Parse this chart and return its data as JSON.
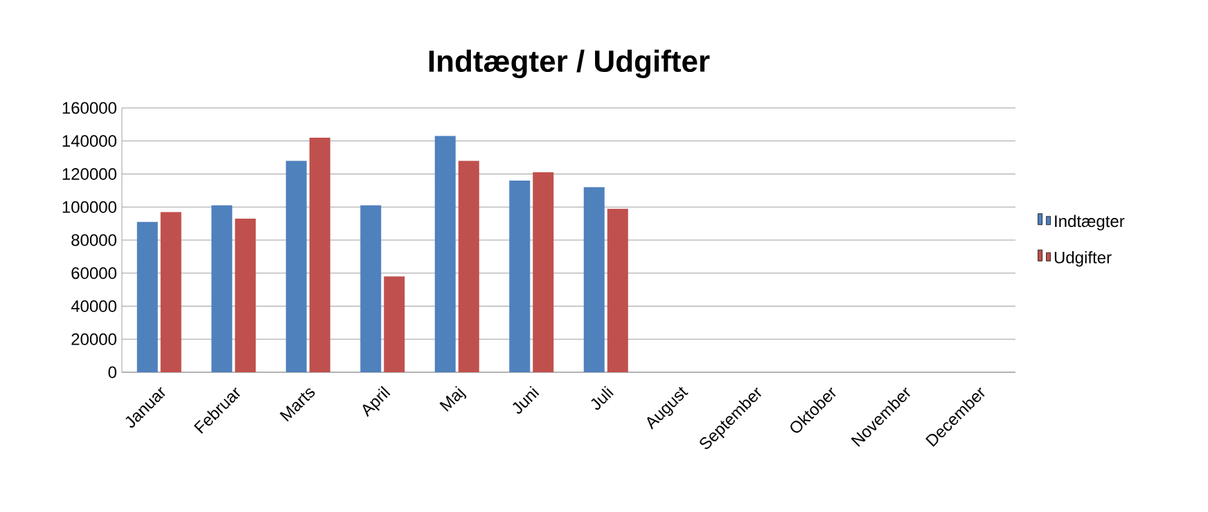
{
  "chart_data": {
    "type": "bar",
    "title": "Indtægter / Udgifter",
    "categories": [
      "Januar",
      "Februar",
      "Marts",
      "April",
      "Maj",
      "Juni",
      "Juli",
      "August",
      "September",
      "Oktober",
      "November",
      "December"
    ],
    "series": [
      {
        "name": "Indtægter",
        "color": "#4f81bd",
        "values": [
          91000,
          101000,
          128000,
          101000,
          143000,
          116000,
          112000,
          null,
          null,
          null,
          null,
          null
        ]
      },
      {
        "name": "Udgifter",
        "color": "#c0504d",
        "values": [
          97000,
          93000,
          142000,
          58000,
          128000,
          121000,
          99000,
          null,
          null,
          null,
          null,
          null
        ]
      }
    ],
    "ylim": [
      0,
      160000
    ],
    "yticks": [
      0,
      20000,
      40000,
      60000,
      80000,
      100000,
      120000,
      140000,
      160000
    ],
    "grid": "y",
    "legend": "right"
  }
}
